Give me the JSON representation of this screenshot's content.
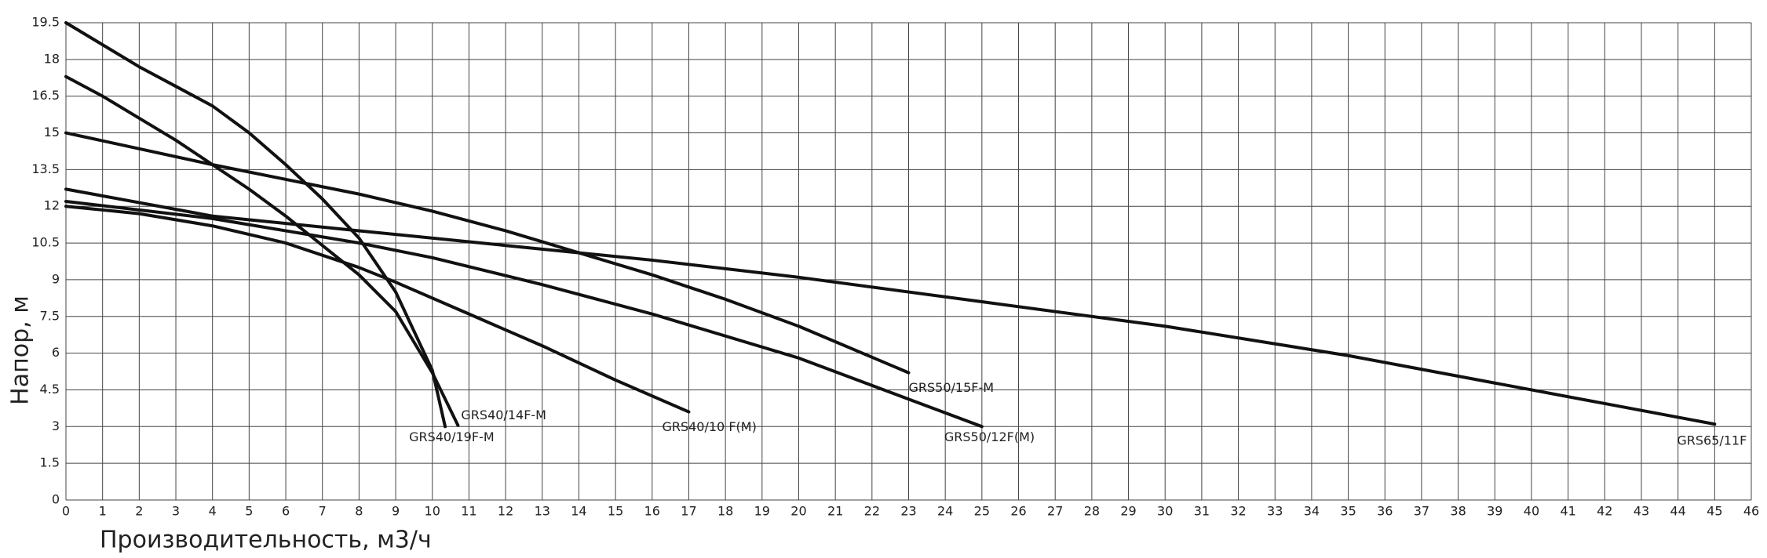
{
  "chart_data": {
    "type": "line",
    "x_label": "Производительность, м3/ч",
    "y_label": "Напор, м",
    "xlim": [
      0,
      46
    ],
    "xticks": [
      0,
      1,
      2,
      3,
      4,
      5,
      6,
      7,
      8,
      9,
      10,
      11,
      12,
      13,
      14,
      15,
      16,
      17,
      18,
      19,
      20,
      21,
      22,
      23,
      24,
      25,
      26,
      27,
      28,
      29,
      30,
      31,
      32,
      33,
      34,
      35,
      36,
      37,
      38,
      39,
      40,
      41,
      42,
      43,
      44,
      45,
      46
    ],
    "ylim": [
      0,
      19.5
    ],
    "yticks": [
      0,
      1.5,
      3,
      4.5,
      6,
      7.5,
      9,
      10.5,
      12,
      13.5,
      15,
      16.5,
      18,
      19.5
    ],
    "grid": true,
    "series": [
      {
        "name": "GRS40/19F-M",
        "color": "#111111",
        "x": [
          0,
          1,
          2,
          3,
          4,
          5,
          6,
          7,
          8,
          9,
          10,
          10.35
        ],
        "values": [
          19.5,
          18.6,
          17.7,
          16.9,
          16.1,
          15.0,
          13.7,
          12.3,
          10.7,
          8.5,
          5.3,
          3.0
        ]
      },
      {
        "name": "GRS40/14F-M",
        "color": "#111111",
        "x": [
          0,
          1,
          2,
          3,
          4,
          5,
          6,
          7,
          8,
          9,
          10,
          10.7
        ],
        "values": [
          17.3,
          16.5,
          15.6,
          14.7,
          13.7,
          12.7,
          11.6,
          10.4,
          9.2,
          7.7,
          5.2,
          3.05
        ]
      },
      {
        "name": "GRS40/10 F(M)",
        "color": "#111111",
        "x": [
          0,
          2,
          4,
          6,
          8,
          9,
          11,
          13,
          15,
          17
        ],
        "values": [
          12.0,
          11.7,
          11.2,
          10.5,
          9.5,
          8.9,
          7.6,
          6.3,
          4.9,
          3.6
        ]
      },
      {
        "name": "GRS50/15F-M",
        "color": "#111111",
        "x": [
          0,
          4,
          8,
          10,
          12,
          14,
          16,
          18,
          20,
          23
        ],
        "values": [
          15.0,
          13.7,
          12.5,
          11.8,
          11.0,
          10.1,
          9.2,
          8.2,
          7.1,
          5.2
        ]
      },
      {
        "name": "GRS50/12F(M)",
        "color": "#111111",
        "x": [
          0,
          4,
          8,
          10,
          13,
          16,
          20,
          25
        ],
        "values": [
          12.2,
          11.5,
          10.5,
          9.9,
          8.8,
          7.6,
          5.8,
          3.0
        ]
      },
      {
        "name": "GRS65/11F",
        "color": "#111111",
        "x": [
          0,
          4,
          8,
          12,
          16,
          20,
          25,
          30,
          35,
          40,
          45
        ],
        "values": [
          12.7,
          11.6,
          11.0,
          10.4,
          9.8,
          9.1,
          8.1,
          7.1,
          5.9,
          4.5,
          3.1
        ]
      }
    ]
  }
}
